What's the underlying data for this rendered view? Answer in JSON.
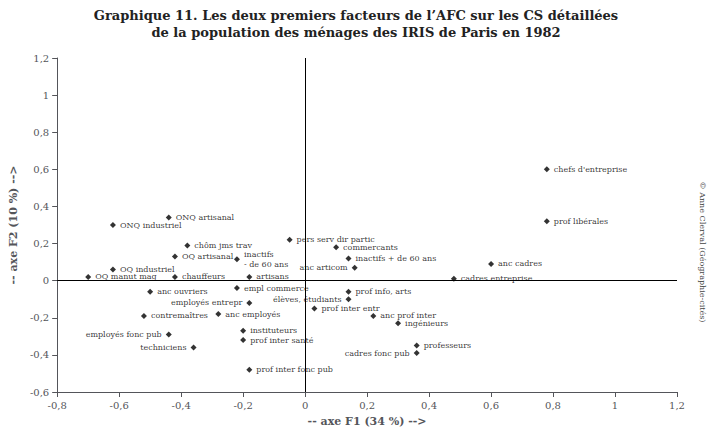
{
  "chart_data": {
    "type": "scatter",
    "title": "Graphique 11. Les deux premiers facteurs de l’AFC sur les CS détaillées",
    "subtitle": "de la population des ménages des IRIS de Paris en 1982",
    "xlabel": "-- axe F1 (34 %) -->",
    "ylabel": "-- axe F2 (10 %) -->",
    "annotations": [
      "© Anne Clerval (Géographie-cités)"
    ],
    "color": "black",
    "marker": "diamond",
    "grid": false,
    "xlim": [
      -0.8,
      1.2
    ],
    "ylim": [
      -0.6,
      1.2
    ],
    "xticks": [
      {
        "value": -0.8,
        "label": "-0,8"
      },
      {
        "value": -0.6,
        "label": "-0,6"
      },
      {
        "value": -0.4,
        "label": "-0,4"
      },
      {
        "value": -0.2,
        "label": "-0,2"
      },
      0,
      {
        "value": 0.2,
        "label": "0,2"
      },
      {
        "value": 0.4,
        "label": "0,4"
      },
      {
        "value": 0.6,
        "label": "0,6"
      },
      {
        "value": 0.8,
        "label": "0,8"
      },
      1,
      {
        "value": 1.2,
        "label": "1,2"
      }
    ],
    "yticks": [
      {
        "value": -0.6,
        "label": "-0,6"
      },
      {
        "value": -0.4,
        "label": "-0,4"
      },
      {
        "value": -0.2,
        "label": "-0,2"
      },
      0,
      {
        "value": 0.2,
        "label": "0,2"
      },
      {
        "value": 0.4,
        "label": "0,4"
      },
      {
        "value": 0.6,
        "label": "0,6"
      },
      {
        "value": 0.8,
        "label": "0,8"
      },
      1,
      {
        "value": 1.2,
        "label": "1,2"
      }
    ],
    "x": [
      -0.62,
      -0.44,
      -0.42,
      -0.62,
      -0.7,
      -0.42,
      -0.38,
      -0.22,
      -0.18,
      -0.5,
      -0.52,
      -0.44,
      -0.36,
      -0.22,
      -0.18,
      -0.28,
      -0.2,
      -0.2,
      -0.18,
      -0.05,
      0.1,
      0.14,
      0.16,
      0.14,
      0.14,
      0.03,
      0.22,
      0.3,
      0.36,
      0.36,
      0.6,
      0.48,
      0.78,
      0.78
    ],
    "y": [
      0.3,
      0.34,
      0.13,
      0.06,
      0.02,
      0.02,
      0.19,
      0.115,
      0.02,
      -0.06,
      -0.19,
      -0.29,
      -0.36,
      -0.04,
      -0.12,
      -0.18,
      -0.27,
      -0.32,
      -0.48,
      0.22,
      0.18,
      0.12,
      0.07,
      -0.06,
      -0.1,
      -0.15,
      -0.19,
      -0.23,
      -0.35,
      -0.39,
      0.09,
      0.01,
      0.6,
      0.32
    ],
    "labels": [
      "ONQ industriel",
      "ONQ artisanal",
      "OQ artisanal",
      "OQ industriel",
      "OQ manut mag",
      "chauffeurs",
      "chôm jms trav",
      "inactifs\n- de 60 ans",
      "artisans",
      "anc ouvriers",
      "contremaîtres",
      "employés fonc pub",
      "techniciens",
      "empl commerce",
      "employés entrepr",
      "anc employés",
      "instituteurs",
      "prof inter santé",
      "prof inter fonc pub",
      "pers serv dir partic",
      "commercants",
      "inactifs + de 60 ans",
      "anc articom",
      "prof info, arts",
      "élèves, étudiants",
      "prof inter entr",
      "anc prof inter",
      "ingénieurs",
      "professeurs",
      "cadres fonc pub",
      "anc cadres",
      "cadres entreprise",
      "chefs d'entreprise",
      "prof libérales"
    ]
  }
}
